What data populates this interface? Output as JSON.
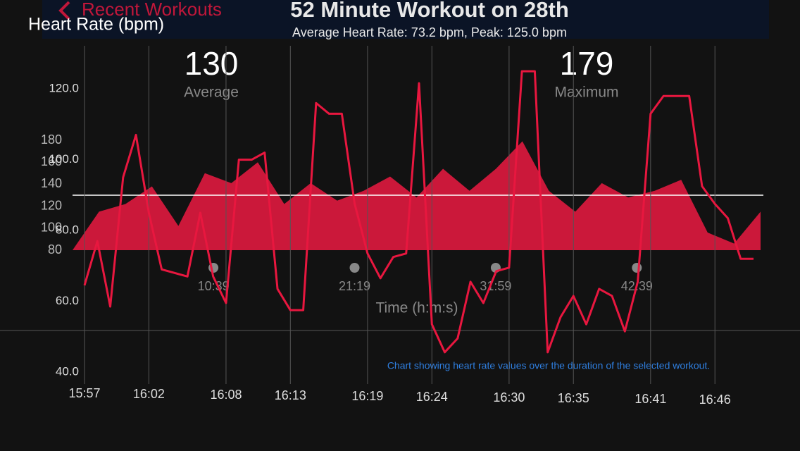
{
  "nav": {
    "back": "Recent Workouts",
    "title": "52 Minute Workout on 28th",
    "subtitle": "Average Heart Rate: 73.2 bpm, Peak: 125.0 bpm"
  },
  "chart_data": [
    {
      "type": "area",
      "xlabel": "Time (h:m:s)",
      "color": "#e0193f",
      "x": [
        0,
        120,
        240,
        360,
        480,
        600,
        720,
        840,
        960,
        1080,
        1200,
        1320,
        1440,
        1560,
        1680,
        1800,
        1920,
        2040,
        2160,
        2280,
        2400,
        2520,
        2640,
        2760,
        2880,
        3000,
        3120
      ],
      "values": [
        80,
        115,
        122,
        138,
        102,
        150,
        141,
        160,
        122,
        141,
        125,
        134,
        147,
        128,
        154,
        134,
        154,
        179,
        134,
        115,
        141,
        128,
        134,
        144,
        96,
        86,
        115
      ],
      "xlim": [
        0,
        3120
      ],
      "xticks": [
        {
          "value": 639,
          "label": "10:39"
        },
        {
          "value": 1279,
          "label": "21:19"
        },
        {
          "value": 1919,
          "label": "31:59"
        },
        {
          "value": 2559,
          "label": "42:39"
        }
      ],
      "ylim": [
        80,
        180
      ],
      "yticks": [
        80,
        100,
        120,
        140,
        160,
        180
      ],
      "stats": [
        {
          "value": 130,
          "label": "Average"
        },
        {
          "value": 179,
          "label": "Maximum"
        }
      ],
      "description": "Chart showing heart rate values over the duration of the selected workout."
    },
    {
      "type": "line",
      "title": "Heart Rate (bpm)",
      "color": "#e8173f",
      "grid": "x",
      "x": [
        "15:57",
        "15:58",
        "15:59",
        "16:00",
        "16:01",
        "16:02",
        "16:03",
        "16:04",
        "16:05",
        "16:06",
        "16:07",
        "16:08",
        "16:09",
        "16:10",
        "16:11",
        "16:12",
        "16:13",
        "16:14",
        "16:15",
        "16:16",
        "16:17",
        "16:18",
        "16:19",
        "16:20",
        "16:21",
        "16:22",
        "16:23",
        "16:24",
        "16:25",
        "16:26",
        "16:27",
        "16:28",
        "16:29",
        "16:30",
        "16:31",
        "16:32",
        "16:33",
        "16:34",
        "16:35",
        "16:36",
        "16:37",
        "16:38",
        "16:39",
        "16:40",
        "16:41",
        "16:42",
        "16:43",
        "16:44",
        "16:45",
        "16:46",
        "16:47",
        "16:48",
        "16:49"
      ],
      "values": [
        64.5,
        77,
        58.5,
        95,
        107,
        85,
        69,
        68,
        67,
        85,
        67,
        59.5,
        100,
        100,
        102,
        63.5,
        57.5,
        57.5,
        116,
        113,
        113,
        87.5,
        73.5,
        66.5,
        72.5,
        73.5,
        121.6,
        53.5,
        45.6,
        49.5,
        65.5,
        59.5,
        68.5,
        69.5,
        125,
        125,
        45.6,
        55.5,
        61.5,
        53.5,
        63.5,
        61.5,
        51.5,
        65.5,
        113,
        118,
        118,
        118,
        92.5,
        87.5,
        83.5,
        72,
        72
      ],
      "xlim": [
        "15:57",
        "16:49"
      ],
      "xticks": [
        "15:57",
        "16:02",
        "16:08",
        "16:13",
        "16:19",
        "16:24",
        "16:30",
        "16:35",
        "16:41",
        "16:46"
      ],
      "ylim": [
        38,
        128
      ],
      "yticks": [
        {
          "value": 40,
          "label": "40.0"
        },
        {
          "value": 60,
          "label": "60.0"
        },
        {
          "value": 80,
          "label": "80.0"
        },
        {
          "value": 100,
          "label": "100.0"
        },
        {
          "value": 120,
          "label": "120.0"
        }
      ]
    }
  ]
}
